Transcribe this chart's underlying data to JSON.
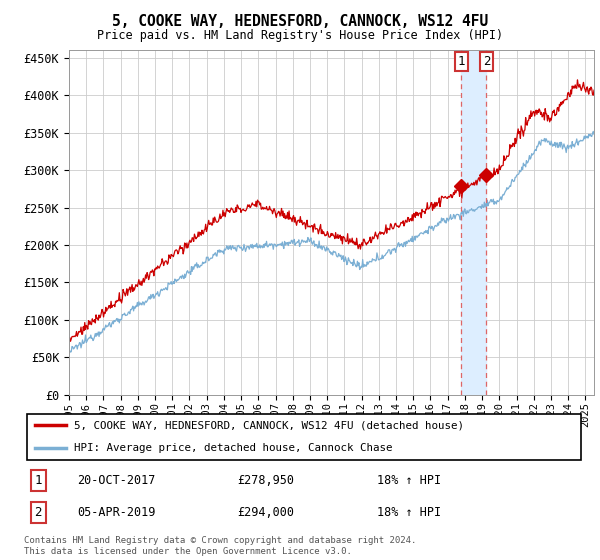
{
  "title": "5, COOKE WAY, HEDNESFORD, CANNOCK, WS12 4FU",
  "subtitle": "Price paid vs. HM Land Registry's House Price Index (HPI)",
  "ylabel_ticks": [
    "£0",
    "£50K",
    "£100K",
    "£150K",
    "£200K",
    "£250K",
    "£300K",
    "£350K",
    "£400K",
    "£450K"
  ],
  "ytick_values": [
    0,
    50000,
    100000,
    150000,
    200000,
    250000,
    300000,
    350000,
    400000,
    450000
  ],
  "ylim": [
    0,
    460000
  ],
  "year_start": 1995,
  "year_end": 2025,
  "legend_line1": "5, COOKE WAY, HEDNESFORD, CANNOCK, WS12 4FU (detached house)",
  "legend_line2": "HPI: Average price, detached house, Cannock Chase",
  "sale1_date": "20-OCT-2017",
  "sale1_price": "£278,950",
  "sale1_hpi": "18% ↑ HPI",
  "sale2_date": "05-APR-2019",
  "sale2_price": "£294,000",
  "sale2_hpi": "18% ↑ HPI",
  "footer": "Contains HM Land Registry data © Crown copyright and database right 2024.\nThis data is licensed under the Open Government Licence v3.0.",
  "red_color": "#cc0000",
  "blue_color": "#7bafd4",
  "shade_color": "#ddeeff",
  "marker1_year": 2017.8,
  "marker2_year": 2019.25,
  "sale1_price_val": 278950,
  "sale2_price_val": 294000,
  "background_color": "#ffffff",
  "grid_color": "#cccccc"
}
